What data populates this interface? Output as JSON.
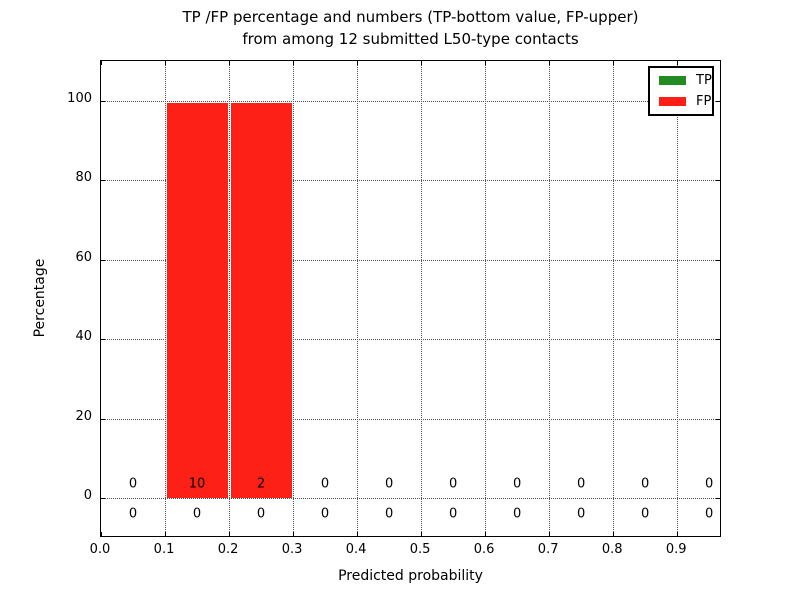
{
  "title": {
    "line1": "TP /FP percentage and numbers (TP-bottom value, FP-upper)",
    "line2": "from among 12 submitted L50-type contacts"
  },
  "axes": {
    "xlabel": "Predicted probability",
    "ylabel": "Percentage"
  },
  "legend": {
    "items": [
      {
        "label": "TP",
        "color": "#228b22"
      },
      {
        "label": "FP",
        "color": "#fc2016"
      }
    ]
  },
  "chart_data": {
    "type": "bar",
    "title": "TP /FP percentage and numbers (TP-bottom value, FP-upper) from among 12 submitted L50-type contacts",
    "xlabel": "Predicted probability",
    "ylabel": "Percentage",
    "xlim": [
      0,
      0.97
    ],
    "ylim": [
      -10,
      110
    ],
    "grid": true,
    "legend_position": "upper right",
    "total_submitted_contacts": 12,
    "bin_width": 0.1,
    "bin_centers": [
      0.05,
      0.15,
      0.25,
      0.35,
      0.45,
      0.55,
      0.65,
      0.75,
      0.85,
      0.95
    ],
    "x_tick_values": [
      0.0,
      0.1,
      0.2,
      0.3,
      0.4,
      0.5,
      0.6,
      0.7,
      0.8,
      0.9
    ],
    "x_tick_labels": [
      "0.0",
      "0.1",
      "0.2",
      "0.3",
      "0.4",
      "0.5",
      "0.6",
      "0.7",
      "0.8",
      "0.9"
    ],
    "y_tick_values": [
      0,
      20,
      40,
      60,
      80,
      100
    ],
    "y_tick_labels": [
      "0",
      "20",
      "40",
      "60",
      "80",
      "100"
    ],
    "series": [
      {
        "name": "TP",
        "color": "#228b22",
        "percent": [
          0,
          0,
          0,
          0,
          0,
          0,
          0,
          0,
          0,
          0
        ],
        "counts": [
          0,
          0,
          0,
          0,
          0,
          0,
          0,
          0,
          0,
          0
        ],
        "count_label_row": "bottom"
      },
      {
        "name": "FP",
        "color": "#fc2016",
        "percent": [
          0,
          99.5,
          99.5,
          0,
          0,
          0,
          0,
          0,
          0,
          0
        ],
        "counts": [
          0,
          10,
          2,
          0,
          0,
          0,
          0,
          0,
          0,
          0
        ],
        "count_label_row": "top"
      }
    ]
  }
}
